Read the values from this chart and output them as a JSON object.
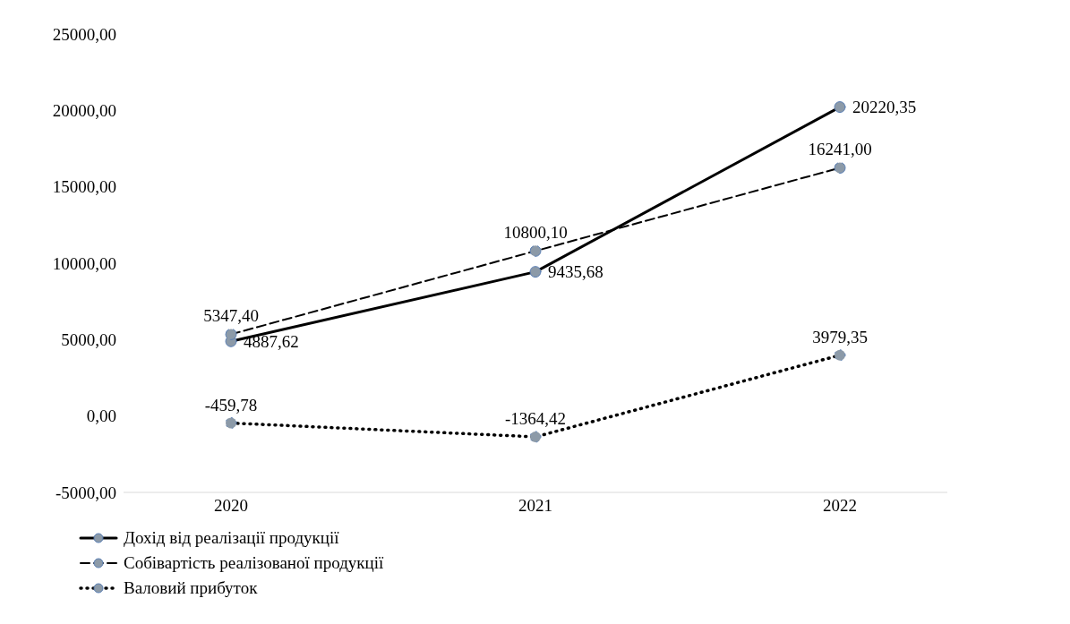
{
  "chart_data": {
    "type": "line",
    "categories": [
      "2020",
      "2021",
      "2022"
    ],
    "series": [
      {
        "name": "Дохід від реалізації продукції",
        "color": "#000000",
        "values": [
          4887.62,
          9435.68,
          20220.35
        ],
        "value_labels": [
          "4887,62",
          "9435,68",
          "20220,35"
        ],
        "line_style": "solid"
      },
      {
        "name": "Собівартість реалізованої продукції",
        "color": "#000000",
        "values": [
          5347.4,
          10800.1,
          16241.0
        ],
        "value_labels": [
          "5347,40",
          "10800,10",
          "16241,00"
        ],
        "line_style": "dashed"
      },
      {
        "name": "Валовий прибуток",
        "color": "#000000",
        "values": [
          -459.78,
          -1364.42,
          3979.35
        ],
        "value_labels": [
          "-459,78",
          "-1364,42",
          "3979,35"
        ],
        "line_style": "dotted"
      }
    ],
    "ylim": [
      -5000,
      25000
    ],
    "yticks": [
      {
        "value": -5000,
        "label": "-5000,00"
      },
      {
        "value": 0,
        "label": "0,00"
      },
      {
        "value": 5000,
        "label": "5000,00"
      },
      {
        "value": 10000,
        "label": "10000,00"
      },
      {
        "value": 15000,
        "label": "15000,00"
      },
      {
        "value": 20000,
        "label": "20000,00"
      },
      {
        "value": 25000,
        "label": "25000,00"
      }
    ],
    "grid": false,
    "legend": "bottom",
    "marker": "circle"
  }
}
